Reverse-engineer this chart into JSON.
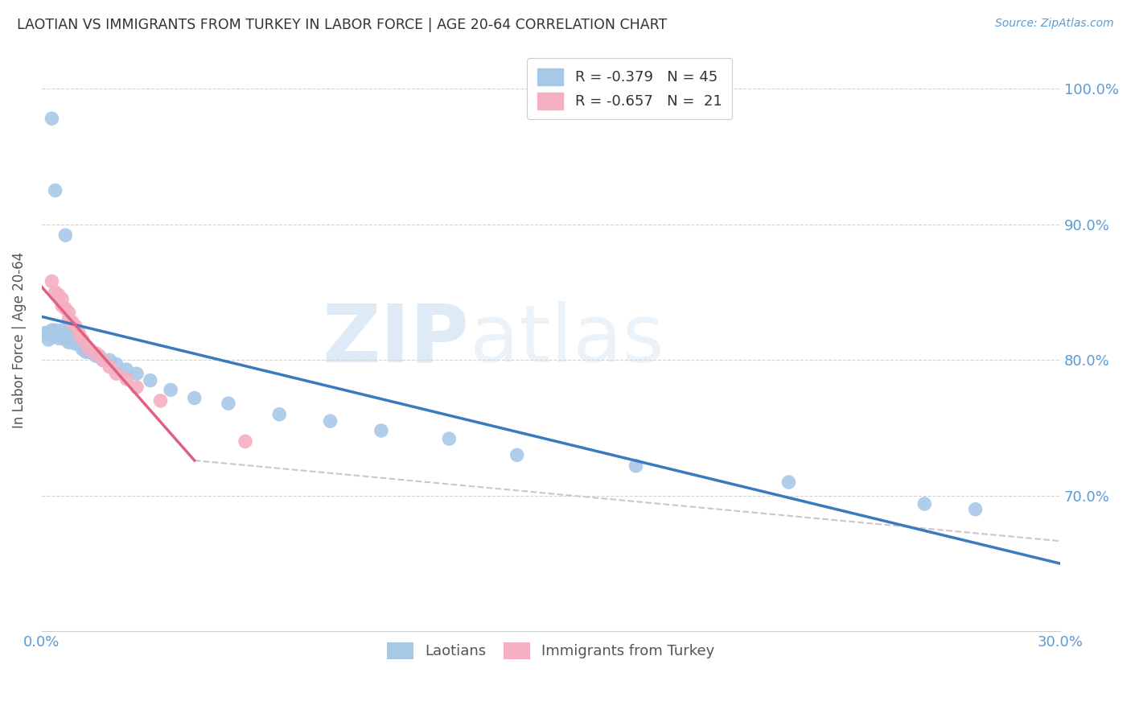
{
  "title": "LAOTIAN VS IMMIGRANTS FROM TURKEY IN LABOR FORCE | AGE 20-64 CORRELATION CHART",
  "source": "Source: ZipAtlas.com",
  "ylabel": "In Labor Force | Age 20-64",
  "axis_color": "#5b9bd5",
  "title_color": "#404040",
  "grid_color": "#c8c8c8",
  "blue_scatter": [
    [
      0.001,
      0.82
    ],
    [
      0.002,
      0.82
    ],
    [
      0.002,
      0.815
    ],
    [
      0.003,
      0.822
    ],
    [
      0.003,
      0.818
    ],
    [
      0.004,
      0.822
    ],
    [
      0.004,
      0.818
    ],
    [
      0.005,
      0.82
    ],
    [
      0.005,
      0.816
    ],
    [
      0.006,
      0.822
    ],
    [
      0.006,
      0.817
    ],
    [
      0.007,
      0.82
    ],
    [
      0.007,
      0.815
    ],
    [
      0.008,
      0.818
    ],
    [
      0.008,
      0.813
    ],
    [
      0.009,
      0.815
    ],
    [
      0.01,
      0.812
    ],
    [
      0.011,
      0.812
    ],
    [
      0.012,
      0.808
    ],
    [
      0.013,
      0.806
    ],
    [
      0.014,
      0.806
    ],
    [
      0.015,
      0.805
    ],
    [
      0.016,
      0.803
    ],
    [
      0.017,
      0.803
    ],
    [
      0.018,
      0.8
    ],
    [
      0.02,
      0.8
    ],
    [
      0.022,
      0.797
    ],
    [
      0.025,
      0.793
    ],
    [
      0.028,
      0.79
    ],
    [
      0.032,
      0.785
    ],
    [
      0.038,
      0.778
    ],
    [
      0.045,
      0.772
    ],
    [
      0.055,
      0.768
    ],
    [
      0.07,
      0.76
    ],
    [
      0.085,
      0.755
    ],
    [
      0.1,
      0.748
    ],
    [
      0.12,
      0.742
    ],
    [
      0.14,
      0.73
    ],
    [
      0.175,
      0.722
    ],
    [
      0.22,
      0.71
    ],
    [
      0.003,
      0.978
    ],
    [
      0.004,
      0.925
    ],
    [
      0.007,
      0.892
    ],
    [
      0.26,
      0.694
    ],
    [
      0.275,
      0.69
    ]
  ],
  "pink_scatter": [
    [
      0.003,
      0.858
    ],
    [
      0.004,
      0.85
    ],
    [
      0.005,
      0.848
    ],
    [
      0.006,
      0.845
    ],
    [
      0.006,
      0.84
    ],
    [
      0.007,
      0.838
    ],
    [
      0.008,
      0.835
    ],
    [
      0.008,
      0.83
    ],
    [
      0.009,
      0.828
    ],
    [
      0.01,
      0.825
    ],
    [
      0.011,
      0.82
    ],
    [
      0.012,
      0.815
    ],
    [
      0.014,
      0.808
    ],
    [
      0.016,
      0.805
    ],
    [
      0.018,
      0.8
    ],
    [
      0.02,
      0.795
    ],
    [
      0.022,
      0.79
    ],
    [
      0.025,
      0.786
    ],
    [
      0.028,
      0.78
    ],
    [
      0.035,
      0.77
    ],
    [
      0.06,
      0.74
    ]
  ],
  "blue_line_x": [
    0.0,
    0.3
  ],
  "blue_line_y": [
    0.832,
    0.65
  ],
  "pink_line_x": [
    0.0,
    0.045
  ],
  "pink_line_y": [
    0.854,
    0.726
  ],
  "dashed_line_x": [
    0.045,
    0.5
  ],
  "dashed_line_y": [
    0.726,
    0.62
  ],
  "xmin": 0.0,
  "xmax": 0.3,
  "ymin": 0.6,
  "ymax": 1.03,
  "ytick_values": [
    1.0,
    0.9,
    0.8,
    0.7
  ],
  "ytick_labels": [
    "100.0%",
    "90.0%",
    "80.0%",
    "70.0%"
  ]
}
